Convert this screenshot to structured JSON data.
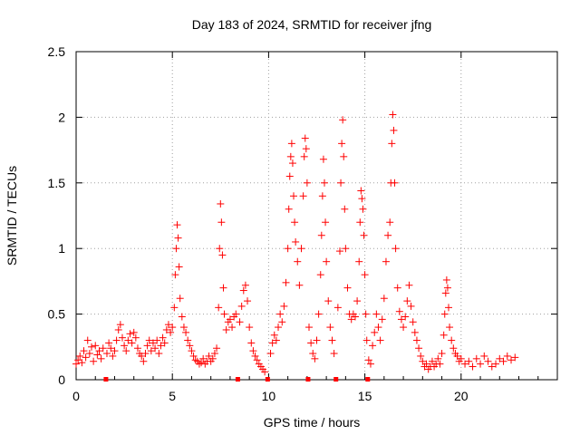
{
  "chart_data": {
    "type": "scatter",
    "title": "Day 183 of 2024, SRMTID for receiver jfng",
    "xlabel": "GPS time / hours",
    "ylabel": "SRMTID / TECUs",
    "xlim": [
      0,
      25
    ],
    "ylim": [
      0,
      2.5
    ],
    "xticks": [
      0,
      5,
      10,
      15,
      20
    ],
    "xtick_labels": [
      "0",
      "5",
      "10",
      "15",
      "20"
    ],
    "yticks": [
      0,
      0.5,
      1,
      1.5,
      2,
      2.5
    ],
    "ytick_labels": [
      "0",
      "0.5",
      "1",
      "1.5",
      "2",
      "2.5"
    ],
    "grid": true,
    "marker": "+",
    "color": "#ff0000",
    "gap_markers_x": [
      1.55,
      8.4,
      9.95,
      12.05,
      13.5,
      15.15
    ],
    "series": [
      {
        "name": "SRMTID",
        "points": [
          [
            0.0,
            0.12
          ],
          [
            0.1,
            0.15
          ],
          [
            0.2,
            0.18
          ],
          [
            0.3,
            0.13
          ],
          [
            0.4,
            0.22
          ],
          [
            0.5,
            0.17
          ],
          [
            0.6,
            0.3
          ],
          [
            0.7,
            0.2
          ],
          [
            0.8,
            0.25
          ],
          [
            0.9,
            0.14
          ],
          [
            1.0,
            0.26
          ],
          [
            1.1,
            0.19
          ],
          [
            1.2,
            0.22
          ],
          [
            1.3,
            0.16
          ],
          [
            1.4,
            0.24
          ],
          [
            1.6,
            0.2
          ],
          [
            1.7,
            0.28
          ],
          [
            1.8,
            0.24
          ],
          [
            1.9,
            0.18
          ],
          [
            2.0,
            0.22
          ],
          [
            2.1,
            0.3
          ],
          [
            2.2,
            0.38
          ],
          [
            2.3,
            0.42
          ],
          [
            2.4,
            0.32
          ],
          [
            2.5,
            0.26
          ],
          [
            2.6,
            0.22
          ],
          [
            2.7,
            0.3
          ],
          [
            2.8,
            0.35
          ],
          [
            2.9,
            0.28
          ],
          [
            3.0,
            0.36
          ],
          [
            3.1,
            0.32
          ],
          [
            3.2,
            0.24
          ],
          [
            3.3,
            0.2
          ],
          [
            3.4,
            0.18
          ],
          [
            3.5,
            0.14
          ],
          [
            3.6,
            0.2
          ],
          [
            3.7,
            0.26
          ],
          [
            3.8,
            0.3
          ],
          [
            3.9,
            0.22
          ],
          [
            4.0,
            0.28
          ],
          [
            4.1,
            0.24
          ],
          [
            4.2,
            0.3
          ],
          [
            4.3,
            0.2
          ],
          [
            4.4,
            0.26
          ],
          [
            4.5,
            0.32
          ],
          [
            4.6,
            0.28
          ],
          [
            4.7,
            0.38
          ],
          [
            4.8,
            0.42
          ],
          [
            4.9,
            0.36
          ],
          [
            5.0,
            0.4
          ],
          [
            5.1,
            0.55
          ],
          [
            5.15,
            0.8
          ],
          [
            5.2,
            1.0
          ],
          [
            5.25,
            1.18
          ],
          [
            5.3,
            1.08
          ],
          [
            5.35,
            0.86
          ],
          [
            5.4,
            0.62
          ],
          [
            5.5,
            0.48
          ],
          [
            5.6,
            0.4
          ],
          [
            5.7,
            0.36
          ],
          [
            5.8,
            0.3
          ],
          [
            5.9,
            0.26
          ],
          [
            6.0,
            0.22
          ],
          [
            6.1,
            0.18
          ],
          [
            6.2,
            0.15
          ],
          [
            6.3,
            0.14
          ],
          [
            6.4,
            0.12
          ],
          [
            6.5,
            0.13
          ],
          [
            6.6,
            0.16
          ],
          [
            6.7,
            0.12
          ],
          [
            6.8,
            0.14
          ],
          [
            6.9,
            0.18
          ],
          [
            7.0,
            0.14
          ],
          [
            7.1,
            0.16
          ],
          [
            7.2,
            0.2
          ],
          [
            7.3,
            0.24
          ],
          [
            7.4,
            0.55
          ],
          [
            7.45,
            1.0
          ],
          [
            7.5,
            1.34
          ],
          [
            7.55,
            1.2
          ],
          [
            7.6,
            0.95
          ],
          [
            7.65,
            0.7
          ],
          [
            7.7,
            0.5
          ],
          [
            7.8,
            0.38
          ],
          [
            7.9,
            0.44
          ],
          [
            8.0,
            0.46
          ],
          [
            8.1,
            0.4
          ],
          [
            8.2,
            0.48
          ],
          [
            8.3,
            0.5
          ],
          [
            8.5,
            0.44
          ],
          [
            8.6,
            0.56
          ],
          [
            8.7,
            0.68
          ],
          [
            8.8,
            0.72
          ],
          [
            8.9,
            0.6
          ],
          [
            9.0,
            0.4
          ],
          [
            9.1,
            0.28
          ],
          [
            9.2,
            0.22
          ],
          [
            9.3,
            0.18
          ],
          [
            9.4,
            0.15
          ],
          [
            9.5,
            0.12
          ],
          [
            9.6,
            0.1
          ],
          [
            9.7,
            0.08
          ],
          [
            9.8,
            0.06
          ],
          [
            10.1,
            0.2
          ],
          [
            10.2,
            0.28
          ],
          [
            10.3,
            0.34
          ],
          [
            10.4,
            0.3
          ],
          [
            10.5,
            0.4
          ],
          [
            10.6,
            0.5
          ],
          [
            10.7,
            0.44
          ],
          [
            10.8,
            0.56
          ],
          [
            10.9,
            0.74
          ],
          [
            11.0,
            1.0
          ],
          [
            11.05,
            1.3
          ],
          [
            11.1,
            1.55
          ],
          [
            11.15,
            1.7
          ],
          [
            11.2,
            1.8
          ],
          [
            11.25,
            1.65
          ],
          [
            11.3,
            1.4
          ],
          [
            11.35,
            1.2
          ],
          [
            11.4,
            1.05
          ],
          [
            11.5,
            0.9
          ],
          [
            11.6,
            0.72
          ],
          [
            11.7,
            1.0
          ],
          [
            11.8,
            1.4
          ],
          [
            11.85,
            1.7
          ],
          [
            11.9,
            1.84
          ],
          [
            11.95,
            1.76
          ],
          [
            12.0,
            1.5
          ],
          [
            12.1,
            0.4
          ],
          [
            12.2,
            0.28
          ],
          [
            12.3,
            0.2
          ],
          [
            12.4,
            0.16
          ],
          [
            12.5,
            0.3
          ],
          [
            12.6,
            0.5
          ],
          [
            12.7,
            0.8
          ],
          [
            12.75,
            1.1
          ],
          [
            12.8,
            1.4
          ],
          [
            12.85,
            1.68
          ],
          [
            12.9,
            1.5
          ],
          [
            12.95,
            1.2
          ],
          [
            13.0,
            0.9
          ],
          [
            13.1,
            0.6
          ],
          [
            13.2,
            0.4
          ],
          [
            13.3,
            0.3
          ],
          [
            13.4,
            0.2
          ],
          [
            13.6,
            0.55
          ],
          [
            13.7,
            0.98
          ],
          [
            13.75,
            1.5
          ],
          [
            13.8,
            1.8
          ],
          [
            13.85,
            1.98
          ],
          [
            13.9,
            1.7
          ],
          [
            13.95,
            1.3
          ],
          [
            14.0,
            1.0
          ],
          [
            14.1,
            0.7
          ],
          [
            14.2,
            0.5
          ],
          [
            14.3,
            0.46
          ],
          [
            14.4,
            0.5
          ],
          [
            14.5,
            0.48
          ],
          [
            14.6,
            0.6
          ],
          [
            14.7,
            0.9
          ],
          [
            14.75,
            1.2
          ],
          [
            14.8,
            1.44
          ],
          [
            14.85,
            1.38
          ],
          [
            14.9,
            1.3
          ],
          [
            14.95,
            1.1
          ],
          [
            15.0,
            0.8
          ],
          [
            15.05,
            0.5
          ],
          [
            15.1,
            0.3
          ],
          [
            15.2,
            0.15
          ],
          [
            15.3,
            0.12
          ],
          [
            15.4,
            0.26
          ],
          [
            15.5,
            0.36
          ],
          [
            15.6,
            0.5
          ],
          [
            15.7,
            0.4
          ],
          [
            15.8,
            0.3
          ],
          [
            15.9,
            0.46
          ],
          [
            16.0,
            0.62
          ],
          [
            16.1,
            0.9
          ],
          [
            16.2,
            1.1
          ],
          [
            16.3,
            1.2
          ],
          [
            16.35,
            1.5
          ],
          [
            16.4,
            1.8
          ],
          [
            16.45,
            2.02
          ],
          [
            16.5,
            1.9
          ],
          [
            16.55,
            1.5
          ],
          [
            16.6,
            1.0
          ],
          [
            16.7,
            0.7
          ],
          [
            16.8,
            0.52
          ],
          [
            16.9,
            0.46
          ],
          [
            17.0,
            0.4
          ],
          [
            17.1,
            0.48
          ],
          [
            17.2,
            0.6
          ],
          [
            17.3,
            0.72
          ],
          [
            17.4,
            0.56
          ],
          [
            17.5,
            0.44
          ],
          [
            17.6,
            0.36
          ],
          [
            17.7,
            0.3
          ],
          [
            17.8,
            0.24
          ],
          [
            17.9,
            0.18
          ],
          [
            18.0,
            0.14
          ],
          [
            18.1,
            0.1
          ],
          [
            18.2,
            0.12
          ],
          [
            18.3,
            0.08
          ],
          [
            18.4,
            0.1
          ],
          [
            18.5,
            0.14
          ],
          [
            18.6,
            0.1
          ],
          [
            18.7,
            0.12
          ],
          [
            18.8,
            0.16
          ],
          [
            18.9,
            0.12
          ],
          [
            19.0,
            0.2
          ],
          [
            19.1,
            0.34
          ],
          [
            19.15,
            0.5
          ],
          [
            19.2,
            0.66
          ],
          [
            19.25,
            0.76
          ],
          [
            19.3,
            0.7
          ],
          [
            19.35,
            0.55
          ],
          [
            19.4,
            0.4
          ],
          [
            19.5,
            0.3
          ],
          [
            19.6,
            0.24
          ],
          [
            19.7,
            0.2
          ],
          [
            19.8,
            0.18
          ],
          [
            19.9,
            0.14
          ],
          [
            20.0,
            0.16
          ],
          [
            20.2,
            0.12
          ],
          [
            20.4,
            0.14
          ],
          [
            20.6,
            0.1
          ],
          [
            20.8,
            0.16
          ],
          [
            21.0,
            0.12
          ],
          [
            21.2,
            0.18
          ],
          [
            21.4,
            0.14
          ],
          [
            21.6,
            0.1
          ],
          [
            21.8,
            0.12
          ],
          [
            22.0,
            0.16
          ],
          [
            22.2,
            0.14
          ],
          [
            22.4,
            0.18
          ],
          [
            22.6,
            0.15
          ],
          [
            22.8,
            0.17
          ]
        ]
      }
    ]
  }
}
